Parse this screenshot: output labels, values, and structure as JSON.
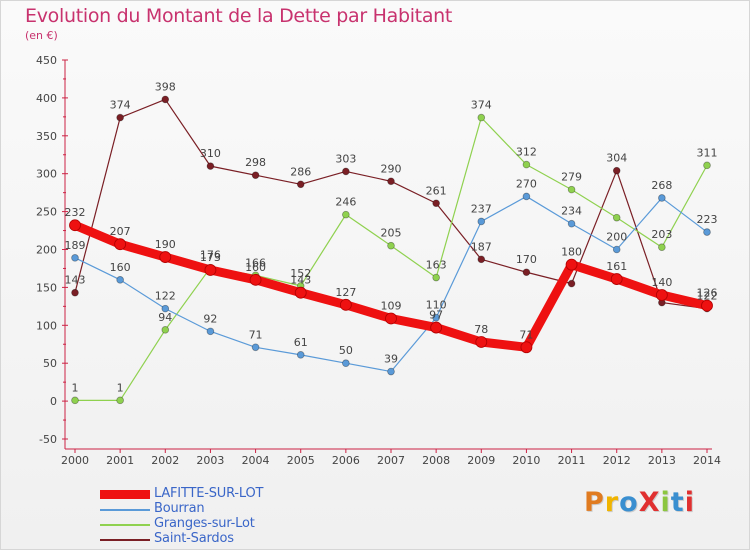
{
  "title": "Evolution du Montant de la Dette par Habitant",
  "subtitle": "(en €)",
  "logo": {
    "text": "ProXiti",
    "colors": [
      "#e07b20",
      "#f0b400",
      "#3a8fd0",
      "#e03030",
      "#8cc63f",
      "#3a8fd0",
      "#e03030"
    ]
  },
  "chart_data": {
    "type": "line",
    "x": [
      "2000",
      "2001",
      "2002",
      "2003",
      "2004",
      "2005",
      "2006",
      "2007",
      "2008",
      "2009",
      "2010",
      "2011",
      "2012",
      "2013",
      "2014"
    ],
    "ylim": [
      -50,
      450
    ],
    "yticks": [
      "-50",
      "0",
      "50",
      "100",
      "150",
      "200",
      "250",
      "300",
      "350",
      "400",
      "450"
    ],
    "grid": false,
    "legend_position": "bottom-left",
    "series": [
      {
        "name": "Saint-Sardos",
        "color": "#7a1f25",
        "values": [
          143,
          374,
          398,
          310,
          298,
          286,
          303,
          290,
          261,
          187,
          170,
          155,
          304,
          130,
          122
        ],
        "labels": [
          "143",
          "374",
          "398",
          "310",
          "298",
          "286",
          "303",
          "290",
          "261",
          "187",
          "170",
          "",
          "304",
          "",
          "122"
        ]
      },
      {
        "name": "Granges-sur-Lot",
        "color": "#8fd14f",
        "values": [
          1,
          1,
          94,
          176,
          166,
          152,
          246,
          205,
          163,
          374,
          312,
          279,
          242,
          203,
          311
        ],
        "labels": [
          "1",
          "1",
          "94",
          "176",
          "166",
          "152",
          "246",
          "205",
          "163",
          "374",
          "312",
          "279",
          "",
          "203",
          "311"
        ]
      },
      {
        "name": "Bourran",
        "color": "#5a9ad8",
        "values": [
          189,
          160,
          122,
          92,
          71,
          61,
          50,
          39,
          110,
          237,
          270,
          234,
          200,
          268,
          223
        ],
        "labels": [
          "189",
          "160",
          "122",
          "92",
          "71",
          "61",
          "50",
          "39",
          "110",
          "237",
          "270",
          "234",
          "200",
          "268",
          "223"
        ]
      },
      {
        "name": "LAFITTE-SUR-LOT",
        "color": "#ee1111",
        "values": [
          232,
          207,
          190,
          173,
          160,
          143,
          127,
          109,
          97,
          78,
          71,
          180,
          161,
          140,
          126
        ],
        "labels": [
          "232",
          "207",
          "190",
          "173",
          "160",
          "143",
          "127",
          "109",
          "97",
          "78",
          "71",
          "180",
          "161",
          "140",
          "126"
        ]
      }
    ],
    "legend": [
      {
        "name": "LAFITTE-SUR-LOT",
        "color": "#ee1111"
      },
      {
        "name": "Bourran",
        "color": "#5a9ad8"
      },
      {
        "name": "Granges-sur-Lot",
        "color": "#8fd14f"
      },
      {
        "name": "Saint-Sardos",
        "color": "#7a1f25"
      }
    ]
  }
}
